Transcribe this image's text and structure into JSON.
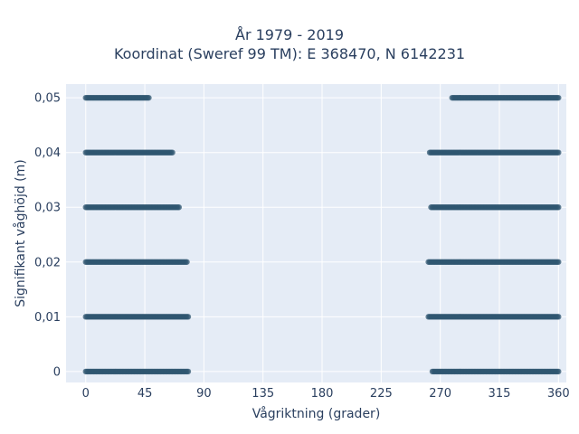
{
  "chart_data": {
    "type": "scatter",
    "title_lines": [
      "År 1979 - 2019",
      "Koordinat (Sweref 99 TM): E 368470, N 6142231"
    ],
    "xlabel": "Vågriktning (grader)",
    "ylabel": "Signifikant våghöjd (m)",
    "xlim": [
      -15,
      366
    ],
    "ylim": [
      -0.002,
      0.0525
    ],
    "x_ticks": [
      0,
      45,
      90,
      135,
      180,
      225,
      270,
      315,
      360
    ],
    "x_tick_labels": [
      "0",
      "45",
      "90",
      "135",
      "180",
      "225",
      "270",
      "315",
      "360"
    ],
    "y_ticks": [
      0,
      0.01,
      0.02,
      0.03,
      0.04,
      0.05
    ],
    "y_tick_labels": [
      "0",
      "0,01",
      "0,02",
      "0,03",
      "0,04",
      "0,05"
    ],
    "grid": true,
    "plot_bgcolor": "#e5ecf6",
    "marker_color": "#2f5570",
    "marker_opacity": 0.75,
    "bands": [
      {
        "y": 0.0,
        "segments": [
          [
            0,
            78
          ],
          [
            264,
            360
          ]
        ]
      },
      {
        "y": 0.01,
        "segments": [
          [
            0,
            78
          ],
          [
            261,
            360
          ]
        ]
      },
      {
        "y": 0.02,
        "segments": [
          [
            0,
            77
          ],
          [
            261,
            360
          ]
        ]
      },
      {
        "y": 0.03,
        "segments": [
          [
            0,
            71
          ],
          [
            263,
            360
          ]
        ]
      },
      {
        "y": 0.04,
        "segments": [
          [
            0,
            66
          ],
          [
            262,
            360
          ]
        ]
      },
      {
        "y": 0.05,
        "segments": [
          [
            0,
            48
          ],
          [
            279,
            360
          ]
        ]
      }
    ]
  }
}
